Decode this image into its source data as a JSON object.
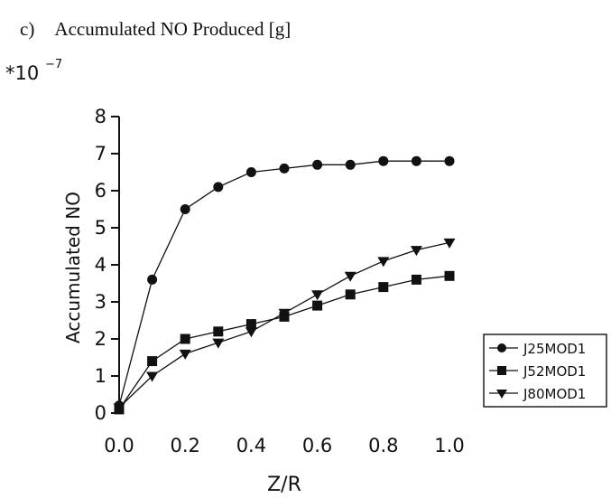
{
  "caption": {
    "label": "c)",
    "title": "Accumulated NO Produced [g]"
  },
  "chart_data": {
    "type": "line",
    "xlabel": "Z/R",
    "ylabel": "Accumulated NO",
    "y_scale_note": "*10",
    "y_scale_exponent": "−7",
    "xlim": [
      0.0,
      1.0
    ],
    "ylim": [
      0,
      8
    ],
    "x_ticks": [
      "0.0",
      "0.2",
      "0.4",
      "0.6",
      "0.8",
      "1.0"
    ],
    "y_ticks": [
      "0",
      "1",
      "2",
      "3",
      "4",
      "5",
      "6",
      "7",
      "8"
    ],
    "grid": false,
    "legend_position": "bottom-right",
    "x": [
      0.0,
      0.1,
      0.2,
      0.3,
      0.4,
      0.5,
      0.6,
      0.7,
      0.8,
      0.9,
      1.0
    ],
    "series": [
      {
        "name": "J25MOD1",
        "marker": "circle",
        "values": [
          0.2,
          3.6,
          5.5,
          6.1,
          6.5,
          6.6,
          6.7,
          6.7,
          6.8,
          6.8,
          6.8
        ]
      },
      {
        "name": "J52MOD1",
        "marker": "square",
        "values": [
          0.1,
          1.4,
          2.0,
          2.2,
          2.4,
          2.6,
          2.9,
          3.2,
          3.4,
          3.6,
          3.7
        ]
      },
      {
        "name": "J80MOD1",
        "marker": "triangle-down",
        "values": [
          0.15,
          1.0,
          1.6,
          1.9,
          2.2,
          2.7,
          3.2,
          3.7,
          4.1,
          4.4,
          4.6
        ]
      }
    ]
  }
}
